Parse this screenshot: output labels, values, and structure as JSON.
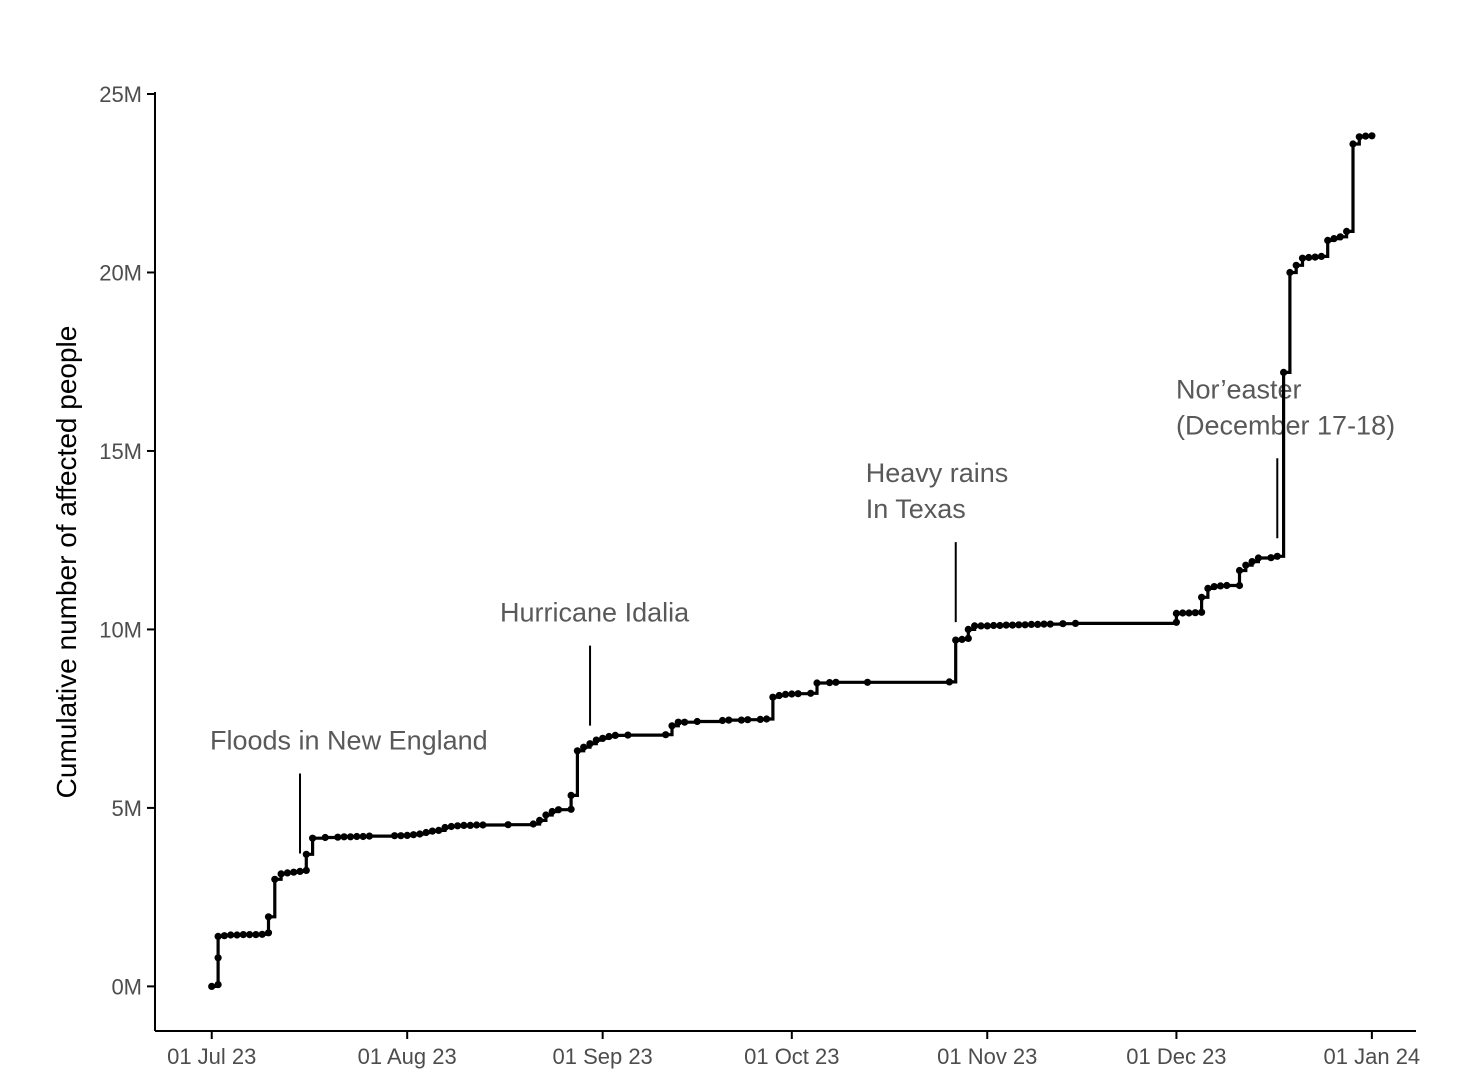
{
  "chart_data": {
    "type": "line",
    "step": true,
    "title": "",
    "xlabel": "",
    "ylabel": "Cumulative number of affected people",
    "ylim": [
      -1250000,
      25000000
    ],
    "xlim": [
      "2023-06-22",
      "2024-01-08"
    ],
    "grid": false,
    "legend": "none",
    "line_color": "#000000",
    "y_ticks": [
      {
        "value": 0,
        "label": "0M"
      },
      {
        "value": 5000000,
        "label": "5M"
      },
      {
        "value": 10000000,
        "label": "10M"
      },
      {
        "value": 15000000,
        "label": "15M"
      },
      {
        "value": 20000000,
        "label": "20M"
      },
      {
        "value": 25000000,
        "label": "25M"
      }
    ],
    "x_ticks": [
      {
        "value": "2023-07-01",
        "label": "01 Jul 23"
      },
      {
        "value": "2023-08-01",
        "label": "01 Aug 23"
      },
      {
        "value": "2023-09-01",
        "label": "01 Sep 23"
      },
      {
        "value": "2023-10-01",
        "label": "01 Oct 23"
      },
      {
        "value": "2023-11-01",
        "label": "01 Nov 23"
      },
      {
        "value": "2023-12-01",
        "label": "01 Dec 23"
      },
      {
        "value": "2024-01-01",
        "label": "01 Jan 24"
      }
    ],
    "series": [
      {
        "points": [
          [
            "2023-07-01",
            0
          ],
          [
            "2023-07-02",
            50000
          ],
          [
            "2023-07-02",
            800000
          ],
          [
            "2023-07-02",
            1400000
          ],
          [
            "2023-07-03",
            1420000
          ],
          [
            "2023-07-04",
            1440000
          ],
          [
            "2023-07-05",
            1440000
          ],
          [
            "2023-07-06",
            1450000
          ],
          [
            "2023-07-07",
            1450000
          ],
          [
            "2023-07-08",
            1450000
          ],
          [
            "2023-07-09",
            1460000
          ],
          [
            "2023-07-10",
            1500000
          ],
          [
            "2023-07-10",
            1950000
          ],
          [
            "2023-07-11",
            3000000
          ],
          [
            "2023-07-12",
            3150000
          ],
          [
            "2023-07-13",
            3180000
          ],
          [
            "2023-07-14",
            3200000
          ],
          [
            "2023-07-15",
            3220000
          ],
          [
            "2023-07-16",
            3250000
          ],
          [
            "2023-07-16",
            3700000
          ],
          [
            "2023-07-17",
            4150000
          ],
          [
            "2023-07-19",
            4170000
          ],
          [
            "2023-07-21",
            4180000
          ],
          [
            "2023-07-22",
            4190000
          ],
          [
            "2023-07-23",
            4190000
          ],
          [
            "2023-07-24",
            4200000
          ],
          [
            "2023-07-25",
            4200000
          ],
          [
            "2023-07-26",
            4210000
          ],
          [
            "2023-07-30",
            4220000
          ],
          [
            "2023-07-31",
            4220000
          ],
          [
            "2023-08-01",
            4230000
          ],
          [
            "2023-08-02",
            4250000
          ],
          [
            "2023-08-03",
            4270000
          ],
          [
            "2023-08-04",
            4310000
          ],
          [
            "2023-08-05",
            4350000
          ],
          [
            "2023-08-06",
            4370000
          ],
          [
            "2023-08-07",
            4450000
          ],
          [
            "2023-08-08",
            4480000
          ],
          [
            "2023-08-09",
            4500000
          ],
          [
            "2023-08-10",
            4510000
          ],
          [
            "2023-08-11",
            4510000
          ],
          [
            "2023-08-12",
            4520000
          ],
          [
            "2023-08-13",
            4520000
          ],
          [
            "2023-08-17",
            4530000
          ],
          [
            "2023-08-21",
            4550000
          ],
          [
            "2023-08-22",
            4650000
          ],
          [
            "2023-08-23",
            4800000
          ],
          [
            "2023-08-24",
            4900000
          ],
          [
            "2023-08-25",
            4950000
          ],
          [
            "2023-08-27",
            4960000
          ],
          [
            "2023-08-27",
            5350000
          ],
          [
            "2023-08-28",
            6600000
          ],
          [
            "2023-08-29",
            6700000
          ],
          [
            "2023-08-30",
            6800000
          ],
          [
            "2023-08-31",
            6900000
          ],
          [
            "2023-09-01",
            6950000
          ],
          [
            "2023-09-02",
            7000000
          ],
          [
            "2023-09-03",
            7030000
          ],
          [
            "2023-09-05",
            7040000
          ],
          [
            "2023-09-11",
            7050000
          ],
          [
            "2023-09-12",
            7300000
          ],
          [
            "2023-09-13",
            7400000
          ],
          [
            "2023-09-14",
            7400000
          ],
          [
            "2023-09-16",
            7420000
          ],
          [
            "2023-09-20",
            7450000
          ],
          [
            "2023-09-21",
            7460000
          ],
          [
            "2023-09-23",
            7460000
          ],
          [
            "2023-09-24",
            7470000
          ],
          [
            "2023-09-26",
            7480000
          ],
          [
            "2023-09-27",
            7490000
          ],
          [
            "2023-09-28",
            8100000
          ],
          [
            "2023-09-29",
            8150000
          ],
          [
            "2023-09-30",
            8180000
          ],
          [
            "2023-10-01",
            8190000
          ],
          [
            "2023-10-02",
            8200000
          ],
          [
            "2023-10-04",
            8210000
          ],
          [
            "2023-10-05",
            8500000
          ],
          [
            "2023-10-07",
            8510000
          ],
          [
            "2023-10-08",
            8520000
          ],
          [
            "2023-10-13",
            8520000
          ],
          [
            "2023-10-26",
            8530000
          ],
          [
            "2023-10-27",
            9700000
          ],
          [
            "2023-10-28",
            9720000
          ],
          [
            "2023-10-29",
            9750000
          ],
          [
            "2023-10-29",
            10000000
          ],
          [
            "2023-10-30",
            10100000
          ],
          [
            "2023-10-31",
            10100000
          ],
          [
            "2023-11-01",
            10100000
          ],
          [
            "2023-11-02",
            10110000
          ],
          [
            "2023-11-03",
            10110000
          ],
          [
            "2023-11-04",
            10120000
          ],
          [
            "2023-11-05",
            10120000
          ],
          [
            "2023-11-06",
            10130000
          ],
          [
            "2023-11-07",
            10130000
          ],
          [
            "2023-11-08",
            10140000
          ],
          [
            "2023-11-09",
            10140000
          ],
          [
            "2023-11-10",
            10150000
          ],
          [
            "2023-11-11",
            10150000
          ],
          [
            "2023-11-13",
            10160000
          ],
          [
            "2023-11-15",
            10170000
          ],
          [
            "2023-12-01",
            10200000
          ],
          [
            "2023-12-01",
            10450000
          ],
          [
            "2023-12-02",
            10460000
          ],
          [
            "2023-12-03",
            10460000
          ],
          [
            "2023-12-04",
            10470000
          ],
          [
            "2023-12-05",
            10480000
          ],
          [
            "2023-12-05",
            10900000
          ],
          [
            "2023-12-06",
            11150000
          ],
          [
            "2023-12-07",
            11200000
          ],
          [
            "2023-12-08",
            11220000
          ],
          [
            "2023-12-09",
            11230000
          ],
          [
            "2023-12-11",
            11230000
          ],
          [
            "2023-12-11",
            11650000
          ],
          [
            "2023-12-12",
            11800000
          ],
          [
            "2023-12-13",
            11900000
          ],
          [
            "2023-12-14",
            12000000
          ],
          [
            "2023-12-16",
            12010000
          ],
          [
            "2023-12-17",
            12050000
          ],
          [
            "2023-12-18",
            17200000
          ],
          [
            "2023-12-19",
            20000000
          ],
          [
            "2023-12-20",
            20200000
          ],
          [
            "2023-12-21",
            20400000
          ],
          [
            "2023-12-22",
            20420000
          ],
          [
            "2023-12-23",
            20430000
          ],
          [
            "2023-12-24",
            20450000
          ],
          [
            "2023-12-25",
            20900000
          ],
          [
            "2023-12-26",
            20950000
          ],
          [
            "2023-12-27",
            21000000
          ],
          [
            "2023-12-28",
            21150000
          ],
          [
            "2023-12-29",
            23600000
          ],
          [
            "2023-12-30",
            23800000
          ],
          [
            "2023-12-31",
            23820000
          ],
          [
            "2024-01-01",
            23830000
          ]
        ]
      }
    ],
    "annotations": [
      {
        "lines": [
          "Floods in New England"
        ],
        "date": "2023-07-15"
      },
      {
        "lines": [
          "Hurricane Idalia"
        ],
        "date": "2023-08-30"
      },
      {
        "lines": [
          "Heavy rains",
          "In Texas"
        ],
        "date": "2023-10-27"
      },
      {
        "lines": [
          "Nor’easter",
          "(December 17-18)"
        ],
        "date": "2023-12-17"
      }
    ]
  }
}
